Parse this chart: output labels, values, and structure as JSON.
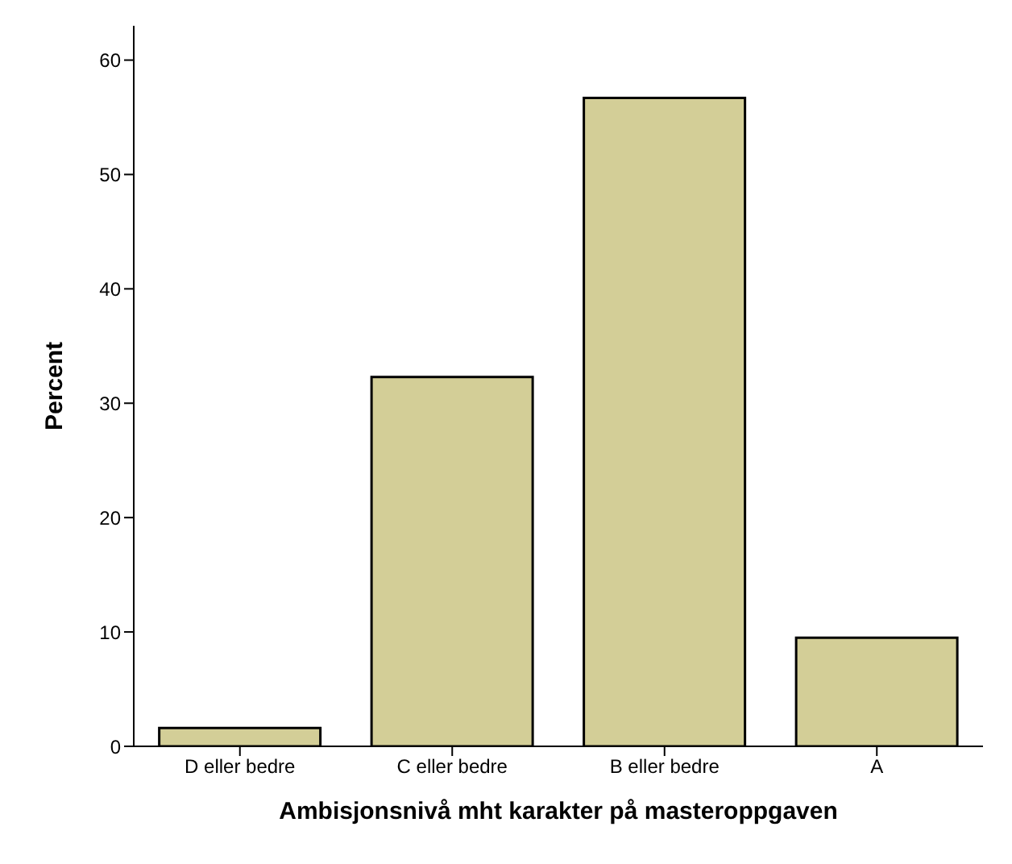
{
  "chart_data": {
    "type": "bar",
    "xlabel": "Ambisjonsnivå mht karakter på masteroppgaven",
    "ylabel": "Percent",
    "categories": [
      "D eller bedre",
      "C eller bedre",
      "B eller bedre",
      "A"
    ],
    "values": [
      1.6,
      32.3,
      56.7,
      9.5
    ],
    "color": "#d3ce97",
    "ylim": [
      0,
      63
    ],
    "yticks": [
      0,
      10,
      20,
      30,
      40,
      50,
      60
    ],
    "grid": false
  }
}
